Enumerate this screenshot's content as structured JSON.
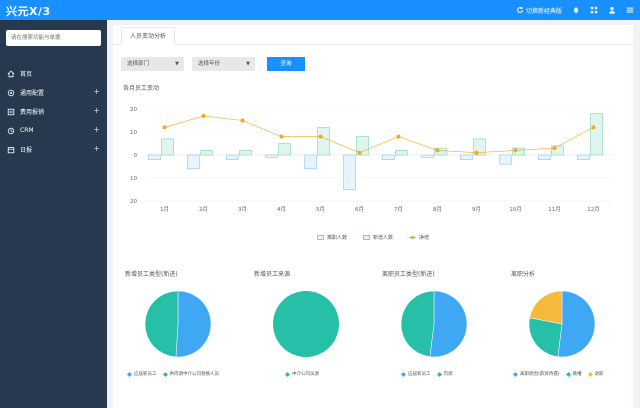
{
  "topbar": {
    "logo": "兴元X/3",
    "switch_label": "切换新经典版",
    "icons": [
      "refresh-icon",
      "bell-icon",
      "grid-icon",
      "user-icon",
      "menu-icon"
    ]
  },
  "sidebar": {
    "search_placeholder": "请在搜索功能与单据",
    "items": [
      {
        "label": "首页",
        "icon": "home-icon",
        "expandable": false
      },
      {
        "label": "通用配置",
        "icon": "gear-icon",
        "expandable": true
      },
      {
        "label": "费用报销",
        "icon": "receipt-icon",
        "expandable": true
      },
      {
        "label": "CRM",
        "icon": "crm-icon",
        "expandable": true
      },
      {
        "label": "日报",
        "icon": "calendar-icon",
        "expandable": true
      }
    ]
  },
  "main": {
    "tab": "人员变动分析",
    "filters": {
      "department": "选择部门",
      "year": "选择年份",
      "query": "查询"
    },
    "monthly_chart_title": "各月员工变动"
  },
  "colors": {
    "primary": "#1890ff",
    "sidebar": "#26394f",
    "left_bar_fill": "#e6f4ff",
    "left_bar_stroke": "#8cc4f5",
    "join_bar_fill": "#dff5ee",
    "join_bar_stroke": "#7fd4b4",
    "net_line": "#f5a623",
    "pie_blue": "#3ea8f5",
    "pie_teal": "#26bfa8",
    "pie_yellow": "#f6b93b"
  },
  "chart_data": [
    {
      "type": "bar",
      "title": "各月员工变动",
      "categories": [
        "1月",
        "2月",
        "3月",
        "4月",
        "5月",
        "6月",
        "7月",
        "8月",
        "9月",
        "10月",
        "11月",
        "12月"
      ],
      "yticks": [
        "20",
        "10",
        "0",
        "10",
        "20"
      ],
      "ylim": [
        -20,
        20
      ],
      "series": [
        {
          "name": "离职人数",
          "values": [
            -2,
            -6,
            -2,
            -1,
            -6,
            -15,
            -2,
            -1,
            -2,
            -4,
            -2,
            -2
          ]
        },
        {
          "name": "新增人数",
          "values": [
            7,
            2,
            2,
            5,
            12,
            8,
            2,
            3,
            7,
            3,
            4,
            18
          ]
        },
        {
          "name": "净增",
          "values": [
            12,
            17,
            15,
            8,
            8,
            1,
            8,
            2,
            1,
            2,
            3,
            12
          ]
        }
      ]
    },
    {
      "type": "pie",
      "title": "新增员工类型(新进)",
      "series": [
        {
          "name": "应届新员工",
          "value": 51
        },
        {
          "name": "供内调中介公司替换人员",
          "value": 49
        }
      ],
      "legend": [
        "应届新员工",
        "供内调中介公司替换人员"
      ]
    },
    {
      "type": "pie",
      "title": "新增员工来源",
      "series": [
        {
          "name": "中介公司员源",
          "value": 100
        }
      ],
      "legend": [
        "中介公司员源"
      ]
    },
    {
      "type": "pie",
      "title": "离职员工类型(新进)",
      "series": [
        {
          "name": "应届新员工",
          "value": 52
        },
        {
          "name": "内调",
          "value": 48
        }
      ],
      "legend": [
        "应届新员工",
        "内调"
      ]
    },
    {
      "type": "pie",
      "title": "离职分析",
      "series": [
        {
          "name": "离职原因(薪资待遇)",
          "value": 52
        },
        {
          "name": "跳槽",
          "value": 26
        },
        {
          "name": "退职",
          "value": 22
        }
      ],
      "legend": [
        "离职原因(薪资待遇)",
        "跳槽",
        "退职"
      ]
    }
  ]
}
